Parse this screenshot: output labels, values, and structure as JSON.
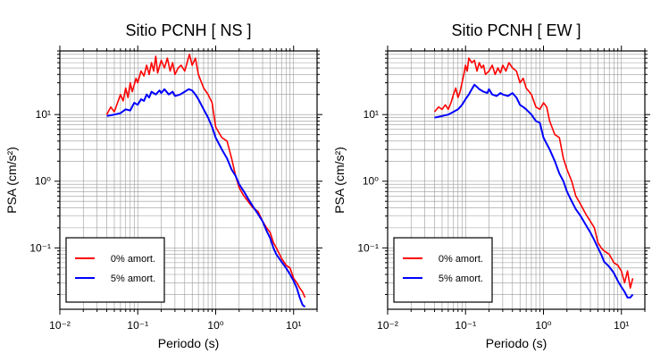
{
  "chart_data": [
    {
      "type": "line",
      "title": "Sitio PCNH [ NS ]",
      "xlabel": "Periodo (s)",
      "ylabel": "PSA (cm/s²)",
      "xscale": "log",
      "yscale": "log",
      "xlim": [
        0.01,
        20
      ],
      "ylim": [
        0.012,
        90
      ],
      "xticks": [
        {
          "v": 0.01,
          "label": "10⁻²"
        },
        {
          "v": 0.1,
          "label": "10⁻¹"
        },
        {
          "v": 1,
          "label": "10⁰"
        },
        {
          "v": 10,
          "label": "10¹"
        }
      ],
      "yticks": [
        {
          "v": 0.1,
          "label": "10⁻¹"
        },
        {
          "v": 1,
          "label": "10⁰"
        },
        {
          "v": 10,
          "label": "10¹"
        }
      ],
      "grid": true,
      "legend_position": "bottom-left",
      "series": [
        {
          "name": "0% amort.",
          "color": "#ff0000",
          "x": [
            0.04,
            0.045,
            0.05,
            0.055,
            0.06,
            0.065,
            0.07,
            0.075,
            0.08,
            0.085,
            0.09,
            0.095,
            0.1,
            0.11,
            0.12,
            0.13,
            0.14,
            0.15,
            0.16,
            0.17,
            0.18,
            0.2,
            0.22,
            0.24,
            0.26,
            0.28,
            0.3,
            0.33,
            0.36,
            0.4,
            0.43,
            0.46,
            0.5,
            0.55,
            0.6,
            0.7,
            0.8,
            0.9,
            1.0,
            1.2,
            1.4,
            1.6,
            1.8,
            2.0,
            2.3,
            2.6,
            3.0,
            3.5,
            4.0,
            4.5,
            5.0,
            5.5,
            6.0,
            7.0,
            8.0,
            9.0,
            10.0,
            11.0,
            12.0,
            13.0,
            14.0
          ],
          "values": [
            10,
            13,
            11,
            15,
            20,
            16,
            25,
            18,
            30,
            22,
            28,
            35,
            30,
            45,
            38,
            55,
            40,
            60,
            45,
            75,
            42,
            65,
            50,
            70,
            45,
            60,
            40,
            50,
            55,
            45,
            60,
            80,
            55,
            70,
            40,
            25,
            20,
            15,
            6.5,
            4.5,
            4.0,
            2.2,
            1.2,
            0.8,
            0.6,
            0.5,
            0.4,
            0.35,
            0.25,
            0.2,
            0.17,
            0.12,
            0.1,
            0.07,
            0.055,
            0.05,
            0.035,
            0.03,
            0.025,
            0.022,
            0.018
          ]
        },
        {
          "name": "5% amort.",
          "color": "#0000ff",
          "x": [
            0.04,
            0.05,
            0.06,
            0.07,
            0.08,
            0.09,
            0.1,
            0.11,
            0.12,
            0.13,
            0.14,
            0.15,
            0.17,
            0.19,
            0.2,
            0.22,
            0.25,
            0.28,
            0.3,
            0.35,
            0.4,
            0.45,
            0.5,
            0.55,
            0.6,
            0.7,
            0.8,
            0.9,
            1.0,
            1.2,
            1.4,
            1.6,
            1.8,
            2.0,
            2.3,
            2.6,
            3.0,
            3.5,
            4.0,
            4.5,
            5.0,
            5.5,
            6.0,
            7.0,
            8.0,
            9.0,
            10.0,
            11.0,
            12.0,
            13.0,
            14.0
          ],
          "values": [
            9.5,
            10,
            10.5,
            12,
            11.5,
            15,
            14,
            17,
            16,
            20,
            18,
            22,
            20,
            23,
            21,
            24,
            20,
            22,
            19,
            20,
            22,
            24,
            23,
            20,
            17,
            12,
            9,
            6.5,
            4.5,
            3.0,
            2.2,
            1.5,
            1.2,
            0.9,
            0.7,
            0.55,
            0.42,
            0.32,
            0.25,
            0.18,
            0.14,
            0.1,
            0.08,
            0.062,
            0.05,
            0.04,
            0.032,
            0.025,
            0.018,
            0.014,
            0.013
          ]
        }
      ]
    },
    {
      "type": "line",
      "title": "Sitio PCNH [ EW ]",
      "xlabel": "Periodo (s)",
      "ylabel": "PSA (cm/s²)",
      "xscale": "log",
      "yscale": "log",
      "xlim": [
        0.01,
        20
      ],
      "ylim": [
        0.012,
        90
      ],
      "xticks": [
        {
          "v": 0.01,
          "label": "10⁻²"
        },
        {
          "v": 0.1,
          "label": "10⁻¹"
        },
        {
          "v": 1,
          "label": "10⁰"
        },
        {
          "v": 10,
          "label": "10¹"
        }
      ],
      "yticks": [
        {
          "v": 0.1,
          "label": "10⁻¹"
        },
        {
          "v": 1,
          "label": "10⁰"
        },
        {
          "v": 10,
          "label": "10¹"
        }
      ],
      "grid": true,
      "legend_position": "bottom-left",
      "series": [
        {
          "name": "0% amort.",
          "color": "#ff0000",
          "x": [
            0.04,
            0.045,
            0.05,
            0.055,
            0.06,
            0.065,
            0.07,
            0.075,
            0.08,
            0.085,
            0.09,
            0.095,
            0.1,
            0.105,
            0.11,
            0.12,
            0.13,
            0.14,
            0.15,
            0.16,
            0.17,
            0.18,
            0.2,
            0.22,
            0.24,
            0.26,
            0.28,
            0.3,
            0.33,
            0.36,
            0.4,
            0.45,
            0.5,
            0.55,
            0.6,
            0.7,
            0.8,
            0.9,
            1.0,
            1.1,
            1.2,
            1.4,
            1.6,
            1.8,
            2.0,
            2.3,
            2.6,
            3.0,
            3.5,
            4.0,
            4.5,
            5.0,
            5.5,
            6.0,
            7.0,
            8.0,
            9.0,
            10.0,
            11.0,
            12.0,
            13.0,
            14.0
          ],
          "values": [
            11,
            13,
            12,
            14,
            12,
            15,
            20,
            25,
            18,
            22,
            30,
            40,
            55,
            45,
            70,
            60,
            65,
            45,
            60,
            50,
            55,
            40,
            45,
            55,
            40,
            50,
            42,
            55,
            45,
            60,
            50,
            45,
            30,
            35,
            25,
            20,
            13,
            12,
            15,
            13,
            8,
            5,
            4.5,
            2.2,
            1.5,
            1.0,
            0.6,
            0.45,
            0.32,
            0.25,
            0.2,
            0.12,
            0.1,
            0.09,
            0.08,
            0.06,
            0.055,
            0.045,
            0.03,
            0.045,
            0.025,
            0.035
          ]
        },
        {
          "name": "5% amort.",
          "color": "#0000ff",
          "x": [
            0.04,
            0.05,
            0.06,
            0.07,
            0.08,
            0.09,
            0.1,
            0.11,
            0.12,
            0.13,
            0.14,
            0.15,
            0.17,
            0.19,
            0.2,
            0.22,
            0.25,
            0.28,
            0.3,
            0.35,
            0.4,
            0.45,
            0.5,
            0.55,
            0.6,
            0.7,
            0.8,
            0.9,
            1.0,
            1.2,
            1.4,
            1.6,
            1.8,
            2.0,
            2.3,
            2.6,
            3.0,
            3.5,
            4.0,
            4.5,
            5.0,
            5.5,
            6.0,
            7.0,
            8.0,
            9.0,
            10.0,
            11.0,
            12.0,
            13.0,
            14.0
          ],
          "values": [
            9,
            9.5,
            10,
            11,
            12,
            14,
            17,
            20,
            24,
            28,
            26,
            24,
            22,
            21,
            24,
            20,
            19,
            21,
            20,
            19,
            21,
            18,
            14,
            13,
            12,
            10,
            8,
            7.5,
            4.5,
            3.0,
            2.0,
            1.3,
            1.0,
            0.7,
            0.5,
            0.38,
            0.3,
            0.22,
            0.17,
            0.13,
            0.1,
            0.08,
            0.062,
            0.052,
            0.042,
            0.032,
            0.026,
            0.022,
            0.018,
            0.018,
            0.02
          ]
        }
      ]
    }
  ]
}
